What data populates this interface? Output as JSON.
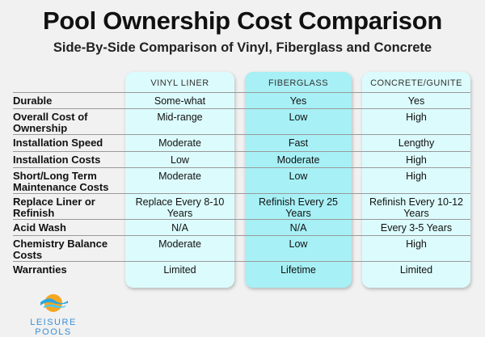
{
  "title": "Pool Ownership Cost Comparison",
  "subtitle": "Side-By-Side Comparison of Vinyl, Fiberglass and Concrete",
  "columns": [
    "VINYL LINER",
    "FIBERGLASS",
    "CONCRETE/GUNITE"
  ],
  "rows": [
    {
      "label": "Durable",
      "values": [
        "Some-what",
        "Yes",
        "Yes"
      ]
    },
    {
      "label": "Overall Cost of Ownership",
      "values": [
        "Mid-range",
        "Low",
        "High"
      ]
    },
    {
      "label": "Installation Speed",
      "values": [
        "Moderate",
        "Fast",
        "Lengthy"
      ]
    },
    {
      "label": "Installation Costs",
      "values": [
        "Low",
        "Moderate",
        "High"
      ]
    },
    {
      "label": "Short/Long Term Maintenance Costs",
      "values": [
        "Moderate",
        "Low",
        "High"
      ]
    },
    {
      "label": "Replace Liner or Refinish",
      "values": [
        "Replace Every 8-10 Years",
        "Refinish Every 25 Years",
        "Refinish Every 10-12 Years"
      ]
    },
    {
      "label": "Acid Wash",
      "values": [
        "N/A",
        "N/A",
        "Every 3-5 Years"
      ]
    },
    {
      "label": "Chemistry Balance Costs",
      "values": [
        "Moderate",
        "Low",
        "High"
      ]
    },
    {
      "label": "Warranties",
      "values": [
        "Limited",
        "Lifetime",
        "Limited"
      ]
    }
  ],
  "logo": {
    "text": "LEISURE POOLS"
  },
  "colors": {
    "vinyl": "#dcfbfc",
    "fiberglass": "#a7f0f6",
    "concrete": "#dcfbfc"
  }
}
